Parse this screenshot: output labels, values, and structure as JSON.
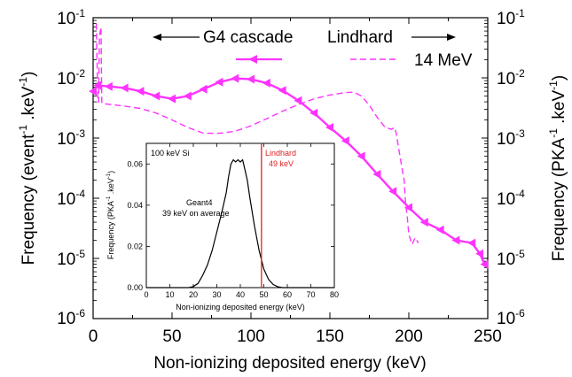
{
  "chart_data": [
    {
      "type": "line",
      "xlabel": "Non-ionizing deposited energy (keV)",
      "ylabel_left": "Frequency (event-1.keV-1)",
      "ylabel_right": "Frequency (PKA-1.keV-1)",
      "xlim": [
        0,
        250
      ],
      "ylim": [
        1e-06,
        0.1
      ],
      "yscale": "log",
      "x_ticks": [
        "0",
        "50",
        "100",
        "150",
        "200",
        "250"
      ],
      "y_ticks": [
        "10-6",
        "10-5",
        "10-4",
        "10-3",
        "10-2",
        "10-1"
      ],
      "annotations": {
        "g4_cascade": "G4 cascade",
        "lindhard": "Lindhard",
        "mev14": "14 MeV"
      },
      "series": [
        {
          "name": "G4 cascade",
          "color": "#ff33ff",
          "style": "solid-triangle-markers",
          "x": [
            0,
            3,
            10,
            20,
            30,
            40,
            50,
            60,
            70,
            80,
            90,
            100,
            110,
            120,
            130,
            140,
            150,
            160,
            170,
            180,
            190,
            200,
            210,
            220,
            230,
            240,
            245,
            248
          ],
          "y": [
            0.006,
            0.0075,
            0.0072,
            0.0068,
            0.006,
            0.005,
            0.0045,
            0.005,
            0.0065,
            0.0085,
            0.0098,
            0.0095,
            0.0082,
            0.0062,
            0.0042,
            0.0026,
            0.0015,
            0.0009,
            0.0005,
            0.00025,
            0.00013,
            7e-05,
            4e-05,
            3e-05,
            2e-05,
            1.8e-05,
            1.2e-05,
            8e-06
          ]
        },
        {
          "name": "Lindhard",
          "color": "#ff33ff",
          "style": "dashed",
          "x": [
            2,
            3,
            3.5,
            4,
            5,
            5.5,
            6,
            8,
            20,
            30,
            40,
            50,
            60,
            70,
            80,
            90,
            100,
            110,
            120,
            130,
            140,
            150,
            160,
            165,
            170,
            175,
            180,
            185,
            189,
            191,
            192,
            195,
            197,
            198,
            199,
            200,
            202,
            204,
            206
          ],
          "y": [
            0.08,
            0.004,
            0.004,
            0.05,
            0.07,
            0.004,
            0.0037,
            0.0037,
            0.0034,
            0.0031,
            0.0026,
            0.002,
            0.0015,
            0.0012,
            0.0012,
            0.0013,
            0.0016,
            0.0021,
            0.0028,
            0.0036,
            0.0045,
            0.0052,
            0.0057,
            0.0058,
            0.005,
            0.0035,
            0.0022,
            0.0015,
            0.0014,
            0.0015,
            0.0012,
            0.0004,
            0.0002,
            8e-05,
            5e-05,
            2.5e-05,
            1.7e-05,
            2.2e-05,
            1.8e-05
          ]
        }
      ]
    },
    {
      "type": "line",
      "title": "100 keV Si",
      "xlabel": "Non-ionizing deposited energy (keV)",
      "ylabel": "Frequency (PKA-1.keV-1)",
      "xlim": [
        0,
        80
      ],
      "ylim": [
        0,
        0.07
      ],
      "x_ticks": [
        "0",
        "10",
        "20",
        "30",
        "40",
        "50",
        "60",
        "70",
        "80"
      ],
      "y_ticks": [
        "0.00",
        "0.02",
        "0.04",
        "0.06"
      ],
      "annotations": {
        "geant4_line1": "Geant4",
        "geant4_line2": "39 keV on average",
        "lindhard_line1": "Lindhard",
        "lindhard_line2": "49 keV"
      },
      "vline": {
        "x": 49,
        "color": "#dd2222"
      },
      "series": [
        {
          "name": "Geant4",
          "color": "#000000",
          "x": [
            0,
            18,
            20,
            22,
            24,
            26,
            28,
            30,
            32,
            34,
            35,
            36,
            37,
            38,
            39,
            40,
            41,
            42,
            43,
            44,
            46,
            48,
            50,
            52,
            54,
            56,
            58,
            80
          ],
          "y": [
            0,
            0,
            0.0005,
            0.002,
            0.006,
            0.011,
            0.018,
            0.027,
            0.036,
            0.046,
            0.054,
            0.06,
            0.062,
            0.061,
            0.062,
            0.061,
            0.062,
            0.057,
            0.052,
            0.044,
            0.03,
            0.018,
            0.009,
            0.004,
            0.0015,
            0.0004,
            0,
            0
          ]
        }
      ]
    }
  ]
}
